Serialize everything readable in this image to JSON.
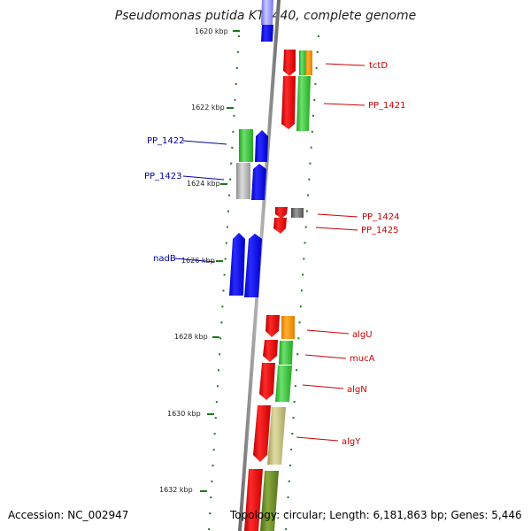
{
  "title": "Pseudomonas putida KT2440, complete genome",
  "accession": "Accession: NC_002947",
  "topology": "Topology: circular; Length: 6,181,863 bp; Genes: 5,446",
  "colors": {
    "forward_label": "#cc0000",
    "reverse_label": "#0000aa",
    "backbone": "#888888",
    "tick": "#1a7a1a"
  },
  "scale": {
    "ticks": [
      "1620 kbp",
      "1622 kbp",
      "1624 kbp",
      "1626 kbp",
      "1628 kbp",
      "1630 kbp",
      "1632 kbp"
    ]
  },
  "genes": {
    "forward": [
      "tctD",
      "PP_1421",
      "PP_1424",
      "PP_1425",
      "algU",
      "mucA",
      "algN",
      "algY"
    ],
    "reverse": [
      "PP_1422",
      "PP_1423",
      "nadB"
    ]
  }
}
